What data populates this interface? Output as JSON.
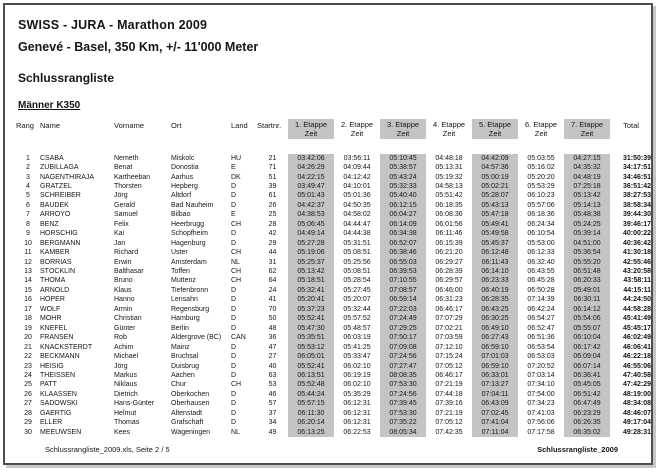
{
  "page": {
    "title": "SWISS - JURA - Marathon 2009",
    "subtitle": "Genevé - Basel, 350 Km, +/- 11'000 Meter",
    "section_title": "Schlussrangliste",
    "category_title": "Männer K350"
  },
  "colors": {
    "shaded_column": "#c4c4c4",
    "page_border": "#4e4e4e"
  },
  "table": {
    "columns": [
      "Rang",
      "Name",
      "Vorname",
      "Ort",
      "Land",
      "Startnr."
    ],
    "etappe_columns": [
      {
        "label": "1. Etappe",
        "sub": "Zeit",
        "shaded": true
      },
      {
        "label": "2. Etappe",
        "sub": "Zeit",
        "shaded": false
      },
      {
        "label": "3. Etappe",
        "sub": "Zeit",
        "shaded": true
      },
      {
        "label": "4. Etappe",
        "sub": "Zeit",
        "shaded": false
      },
      {
        "label": "5. Etappe",
        "sub": "Zeit",
        "shaded": true
      },
      {
        "label": "6. Etappe",
        "sub": "Zeit",
        "shaded": false
      },
      {
        "label": "7. Etappe",
        "sub": "Zeit",
        "shaded": true
      }
    ],
    "total_label": "Total",
    "rows": [
      {
        "rang": "1",
        "name": "CSABA",
        "vorname": "Nemeth",
        "ort": "Miskolc",
        "land": "HU",
        "startnr": "21",
        "etappen": [
          "03:42:06",
          "03:56:11",
          "05:10:45",
          "04:48:18",
          "04:42:09",
          "05:03:55",
          "04:27:15"
        ],
        "total": "31:50:39"
      },
      {
        "rang": "2",
        "name": "ZUBILLAGA",
        "vorname": "Benat",
        "ort": "Donostia",
        "land": "E",
        "startnr": "71",
        "etappen": [
          "04:26:29",
          "04:09:44",
          "05:38:57",
          "05:13:31",
          "04:57:36",
          "05:16:02",
          "04:35:32"
        ],
        "total": "34:17:51"
      },
      {
        "rang": "3",
        "name": "NAGENTHIRAJA",
        "vorname": "Kartheeban",
        "ort": "Aarhus",
        "land": "DK",
        "startnr": "51",
        "etappen": [
          "04:22:15",
          "04:12:42",
          "05:43:24",
          "05:19:32",
          "05:00:19",
          "05:20:20",
          "04:48:19"
        ],
        "total": "34:46:51"
      },
      {
        "rang": "4",
        "name": "GRATZEL",
        "vorname": "Thorsten",
        "ort": "Hepberg",
        "land": "D",
        "startnr": "39",
        "etappen": [
          "03:49:47",
          "04:10:01",
          "05:32:33",
          "04:58:13",
          "05:02:21",
          "05:53:29",
          "07:25:18"
        ],
        "total": "36:51:42"
      },
      {
        "rang": "5",
        "name": "SCHREIBER",
        "vorname": "Jörg",
        "ort": "Altdorf",
        "land": "D",
        "startnr": "61",
        "etappen": [
          "05:01:43",
          "05:01:36",
          "05:40:40",
          "05:51:42",
          "05:28:07",
          "06:10:23",
          "05:13:42"
        ],
        "total": "38:27:53"
      },
      {
        "rang": "6",
        "name": "BAUDEK",
        "vorname": "Gerald",
        "ort": "Bad Nauheim",
        "land": "D",
        "startnr": "26",
        "etappen": [
          "04:42:37",
          "04:50:35",
          "06:12:15",
          "06:18:35",
          "05:43:13",
          "05:57:06",
          "05:14:13"
        ],
        "total": "38:58:34"
      },
      {
        "rang": "7",
        "name": "ARROYO",
        "vorname": "Samuel",
        "ort": "Bilbao",
        "land": "E",
        "startnr": "25",
        "etappen": [
          "04:38:53",
          "04:58:02",
          "06:04:27",
          "06:08:36",
          "05:47:18",
          "06:18:36",
          "05:48:38"
        ],
        "total": "39:44:30"
      },
      {
        "rang": "8",
        "name": "BENZ",
        "vorname": "Felix",
        "ort": "Heerbrugg",
        "land": "CH",
        "startnr": "28",
        "etappen": [
          "05:06:45",
          "04:44:47",
          "06:14:09",
          "06:01:56",
          "05:49:41",
          "06:24:34",
          "05:24:25"
        ],
        "total": "39:46:17"
      },
      {
        "rang": "9",
        "name": "HORSCHIG",
        "vorname": "Kai",
        "ort": "Schopfheim",
        "land": "D",
        "startnr": "42",
        "etappen": [
          "04:49:14",
          "04:44:38",
          "06:34:38",
          "06:11:46",
          "05:49:58",
          "06:10:54",
          "05:39:14"
        ],
        "total": "40:00:22"
      },
      {
        "rang": "10",
        "name": "BERGMANN",
        "vorname": "Jan",
        "ort": "Hagenburg",
        "land": "D",
        "startnr": "29",
        "etappen": [
          "05:27:28",
          "05:31:51",
          "06:52:07",
          "06:15:39",
          "05:45:37",
          "05:53:00",
          "04:51:00"
        ],
        "total": "40:36:42"
      },
      {
        "rang": "11",
        "name": "KAMBER",
        "vorname": "Richard",
        "ort": "Uster",
        "land": "CH",
        "startnr": "44",
        "etappen": [
          "05:19:06",
          "05:08:51",
          "06:38:46",
          "06:21:20",
          "06:12:48",
          "06:12:33",
          "05:36:54"
        ],
        "total": "41:30:18"
      },
      {
        "rang": "12",
        "name": "BORRIAS",
        "vorname": "Erwin",
        "ort": "Amsterdam",
        "land": "NL",
        "startnr": "31",
        "etappen": [
          "05:25:37",
          "05:25:56",
          "06:55:03",
          "06:29:27",
          "06:11:43",
          "06:32:40",
          "05:55:20"
        ],
        "total": "42:55:46"
      },
      {
        "rang": "13",
        "name": "STÖCKLIN",
        "vorname": "Balthasar",
        "ort": "Toffen",
        "land": "CH",
        "startnr": "62",
        "etappen": [
          "05:13:42",
          "05:08:51",
          "06:39:53",
          "06:28:39",
          "06:14:10",
          "06:43:55",
          "06:51:48"
        ],
        "total": "43:20:58"
      },
      {
        "rang": "14",
        "name": "THOMA",
        "vorname": "Bruno",
        "ort": "Muttenz",
        "land": "CH",
        "startnr": "64",
        "etappen": [
          "05:18:51",
          "05:28:54",
          "07:10:55",
          "06:29:57",
          "06:23:33",
          "06:45:28",
          "06:20:33"
        ],
        "total": "43:58:11"
      },
      {
        "rang": "15",
        "name": "ARNOLD",
        "vorname": "Klaus",
        "ort": "Tiefenbronn",
        "land": "D",
        "startnr": "24",
        "etappen": [
          "05:32:41",
          "05:27:45",
          "07:08:57",
          "06:46:00",
          "06:40:19",
          "06:50:28",
          "05:49:01"
        ],
        "total": "44:15:11"
      },
      {
        "rang": "16",
        "name": "HÖPER",
        "vorname": "Hanno",
        "ort": "Lensahn",
        "land": "D",
        "startnr": "41",
        "etappen": [
          "05:20:41",
          "05:20:07",
          "06:59:14",
          "06:31:23",
          "06:28:35",
          "07:14:39",
          "06:30:11"
        ],
        "total": "44:24:50"
      },
      {
        "rang": "17",
        "name": "WOLF",
        "vorname": "Armin",
        "ort": "Regensburg",
        "land": "D",
        "startnr": "70",
        "etappen": [
          "05:37:23",
          "05:32:44",
          "07:22:03",
          "06:46:17",
          "06:43:25",
          "06:42:24",
          "06:14:12"
        ],
        "total": "44:58:28"
      },
      {
        "rang": "18",
        "name": "MOHR",
        "vorname": "Christian",
        "ort": "Hamburg",
        "land": "D",
        "startnr": "50",
        "etappen": [
          "05:52:41",
          "05:57:52",
          "07:24:49",
          "07:07:29",
          "06:30:25",
          "06:54:27",
          "05:54:06"
        ],
        "total": "45:41:49"
      },
      {
        "rang": "19",
        "name": "KNEFEL",
        "vorname": "Günter",
        "ort": "Berlin",
        "land": "D",
        "startnr": "48",
        "etappen": [
          "05:47:30",
          "05:48:57",
          "07:29:25",
          "07:02:21",
          "06:49:10",
          "06:52:47",
          "05:55:07"
        ],
        "total": "45:45:17"
      },
      {
        "rang": "20",
        "name": "FRANSEN",
        "vorname": "Rob",
        "ort": "Aldergrove (BC)",
        "land": "CAN",
        "startnr": "36",
        "etappen": [
          "05:35:51",
          "06:03:19",
          "07:50:17",
          "07:03:59",
          "06:27:43",
          "06:51:36",
          "06:10:04"
        ],
        "total": "46:02:49"
      },
      {
        "rang": "21",
        "name": "KNACKSTERDT",
        "vorname": "Achim",
        "ort": "Mainz",
        "land": "D",
        "startnr": "47",
        "etappen": [
          "05:53:12",
          "05:41:25",
          "07:09:08",
          "07:12:10",
          "06:59:10",
          "06:53:54",
          "06:17:42"
        ],
        "total": "46:06:41"
      },
      {
        "rang": "22",
        "name": "BECKMANN",
        "vorname": "Michael",
        "ort": "Bruchsal",
        "land": "D",
        "startnr": "27",
        "etappen": [
          "06:05:01",
          "05:33:47",
          "07:24:56",
          "07:15:24",
          "07:01:03",
          "06:53:03",
          "06:09:04"
        ],
        "total": "46:22:18"
      },
      {
        "rang": "23",
        "name": "HEISIG",
        "vorname": "Jörg",
        "ort": "Duisbrug",
        "land": "D",
        "startnr": "40",
        "etappen": [
          "05:52:41",
          "06:02:10",
          "07:27:47",
          "07:05:12",
          "06:59:10",
          "07:20:52",
          "06:07:14"
        ],
        "total": "46:55:06"
      },
      {
        "rang": "24",
        "name": "THEISSEN",
        "vorname": "Markus",
        "ort": "Aachen",
        "land": "D",
        "startnr": "63",
        "etappen": [
          "06:13:51",
          "06:19:19",
          "08:08:35",
          "06:46:17",
          "06:33:01",
          "07:03:14",
          "06:36:41"
        ],
        "total": "47:40:58"
      },
      {
        "rang": "25",
        "name": "PATT",
        "vorname": "Niklaus",
        "ort": "Chur",
        "land": "CH",
        "startnr": "53",
        "etappen": [
          "05:52:48",
          "06:02:10",
          "07:53:30",
          "07:21:19",
          "07:13:27",
          "07:34:10",
          "05:45:05"
        ],
        "total": "47:42:29"
      },
      {
        "rang": "26",
        "name": "KLAASSEN",
        "vorname": "Dietrich",
        "ort": "Oberkochen",
        "land": "D",
        "startnr": "46",
        "etappen": [
          "05:44:24",
          "05:35:29",
          "07:24:56",
          "07:44:18",
          "07:04:11",
          "07:54:00",
          "06:51:42"
        ],
        "total": "48:19:00"
      },
      {
        "rang": "27",
        "name": "SADOWSKI",
        "vorname": "Hans-Günter",
        "ort": "Oberhausen",
        "land": "D",
        "startnr": "57",
        "etappen": [
          "05:57:15",
          "06:12:31",
          "07:39:45",
          "07:39:16",
          "06:43:09",
          "07:34:23",
          "06:47:49"
        ],
        "total": "48:34:08"
      },
      {
        "rang": "28",
        "name": "GAERTIG",
        "vorname": "Helmut",
        "ort": "Altenstadt",
        "land": "D",
        "startnr": "37",
        "etappen": [
          "06:11:30",
          "06:12:31",
          "07:53:30",
          "07:21:19",
          "07:02:45",
          "07:41:03",
          "06:23:29"
        ],
        "total": "48:46:07"
      },
      {
        "rang": "29",
        "name": "ELLER",
        "vorname": "Thomas",
        "ort": "Grafschaft",
        "land": "D",
        "startnr": "34",
        "etappen": [
          "06:20:14",
          "06:12:31",
          "07:35:22",
          "07:05:12",
          "07:41:04",
          "07:56:06",
          "06:26:35"
        ],
        "total": "49:17:04"
      },
      {
        "rang": "30",
        "name": "MEEUWSEN",
        "vorname": "Kees",
        "ort": "Wageningen",
        "land": "NL",
        "startnr": "49",
        "etappen": [
          "06:13:25",
          "06:22:53",
          "08:05:34",
          "07:42:35",
          "07:11:04",
          "07:17:58",
          "06:35:02"
        ],
        "total": "49:28:31"
      }
    ]
  },
  "footer": {
    "left": "Schlussrangliste_2009.xls, Seite 2 / 5",
    "right": "Schlussrangliste_2009"
  }
}
